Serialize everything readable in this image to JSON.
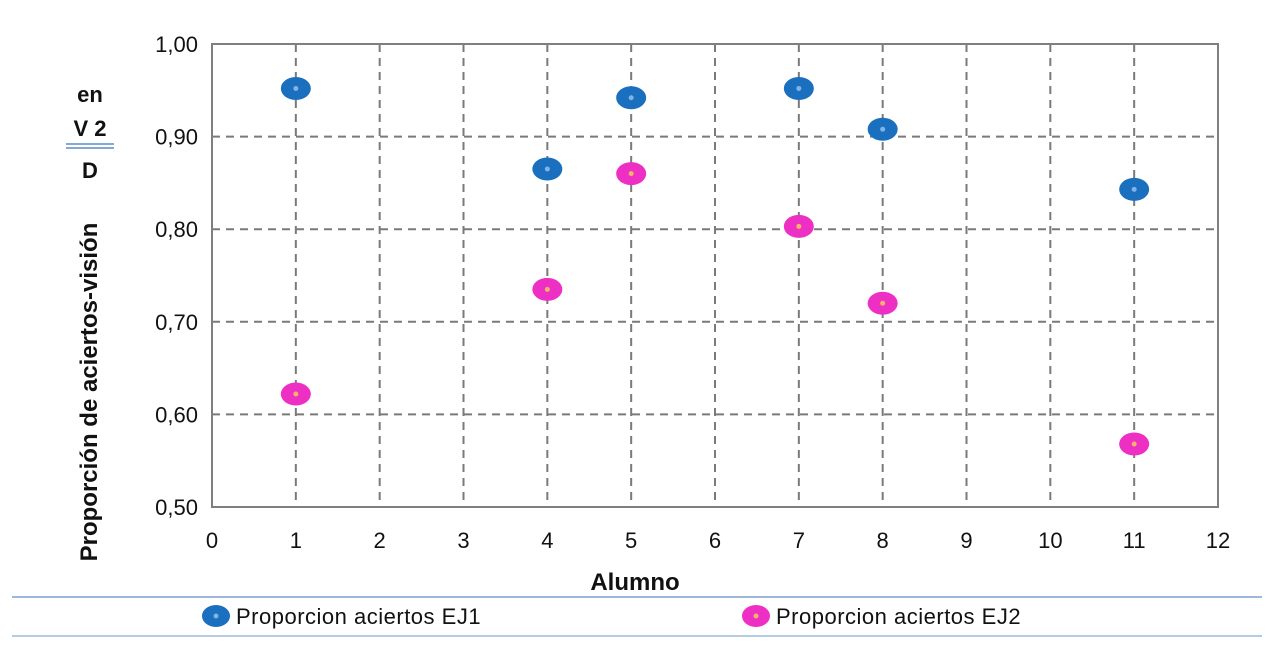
{
  "side_note": {
    "line1": "en",
    "line2": "V 2",
    "line3": "D"
  },
  "colors": {
    "ej1": "#1a6fbe",
    "ej2": "#ee2fc4",
    "grid": "#7a7a7a",
    "frame": "#7f7f7f",
    "legend_rule": "#9db8d8"
  },
  "chart_data": {
    "type": "scatter",
    "xlabel": "Alumno",
    "ylabel": "Proporción de aciertos-visión",
    "xlim": [
      0,
      12
    ],
    "ylim": [
      0.5,
      1.0
    ],
    "x_ticks": [
      0,
      1,
      2,
      3,
      4,
      5,
      6,
      7,
      8,
      9,
      10,
      11,
      12
    ],
    "y_ticks": [
      0.5,
      0.6,
      0.7,
      0.8,
      0.9,
      1.0
    ],
    "y_tick_labels": [
      "0,50",
      "0,60",
      "0,70",
      "0,80",
      "0,90",
      "1,00"
    ],
    "grid": true,
    "legend_position": "bottom",
    "series": [
      {
        "name": "Proporcion aciertos EJ1",
        "x": [
          1,
          4,
          5,
          7,
          8,
          11
        ],
        "y": [
          0.952,
          0.865,
          0.942,
          0.952,
          0.908,
          0.843
        ]
      },
      {
        "name": "Proporcion aciertos EJ2",
        "x": [
          1,
          4,
          5,
          7,
          8,
          11
        ],
        "y": [
          0.622,
          0.735,
          0.86,
          0.803,
          0.72,
          0.568
        ]
      }
    ]
  }
}
